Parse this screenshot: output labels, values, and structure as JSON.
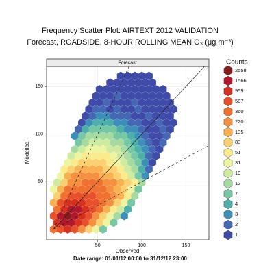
{
  "chart_data": {
    "type": "hexbin",
    "title": "Frequency Scatter Plot: AIRTEXT 2012 VALIDATION",
    "subtitle": "Forecast, ROADSIDE, 8-HOUR ROLLING MEAN O₃ (μg m⁻³)",
    "strip_label": "Forecast",
    "x_label": "Observed",
    "y_label": "Modelled",
    "footer": "Date range: 01/01/12 00:00 to 31/12/12 23:00",
    "xlim": [
      -8,
      176
    ],
    "ylim": [
      -11,
      171
    ],
    "xticks": [
      50,
      100,
      150
    ],
    "yticks": [
      50,
      100,
      150
    ],
    "grid": true,
    "reference_lines": [
      {
        "slope": 1,
        "dashed": false
      },
      {
        "slope": 2,
        "dashed": true
      },
      {
        "slope": 0.5,
        "dashed": true
      }
    ],
    "legend_title": "Counts",
    "legend_position": "right",
    "legend": [
      {
        "count": 2558,
        "color": "#8b1a1a"
      },
      {
        "count": 1566,
        "color": "#b2182b"
      },
      {
        "count": 959,
        "color": "#d7301f"
      },
      {
        "count": 587,
        "color": "#e8502a"
      },
      {
        "count": 360,
        "color": "#f07030"
      },
      {
        "count": 220,
        "color": "#f59040"
      },
      {
        "count": 135,
        "color": "#f9b050"
      },
      {
        "count": 83,
        "color": "#fbd070"
      },
      {
        "count": 51,
        "color": "#fceb8c"
      },
      {
        "count": 31,
        "color": "#eef5a0"
      },
      {
        "count": 19,
        "color": "#cfeba0"
      },
      {
        "count": 12,
        "color": "#a5dba0"
      },
      {
        "count": 7,
        "color": "#76c7a3"
      },
      {
        "count": 4,
        "color": "#4cafaa"
      },
      {
        "count": 3,
        "color": "#3c8fb8"
      },
      {
        "count": 2,
        "color": "#4568b5"
      },
      {
        "count": 1,
        "color": "#3f4ba8"
      }
    ],
    "hexbins": [
      {
        "y": 0,
        "x": [
          0,
          8,
          16,
          24,
          32,
          40,
          48,
          56
        ],
        "counts": [
          360,
          587,
          959,
          587,
          220,
          83,
          31,
          7
        ]
      },
      {
        "y": 7,
        "x": [
          4,
          12,
          20,
          28,
          36,
          44,
          52,
          60,
          68
        ],
        "counts": [
          959,
          1566,
          1566,
          959,
          587,
          220,
          83,
          31,
          7
        ]
      },
      {
        "y": 14,
        "x": [
          0,
          8,
          16,
          24,
          32,
          40,
          48,
          56,
          64,
          72,
          80
        ],
        "counts": [
          587,
          1566,
          2558,
          1566,
          959,
          587,
          220,
          83,
          31,
          12,
          3
        ]
      },
      {
        "y": 21,
        "x": [
          4,
          12,
          20,
          28,
          36,
          44,
          52,
          60,
          68,
          76,
          84
        ],
        "counts": [
          360,
          959,
          1566,
          1566,
          959,
          587,
          360,
          135,
          51,
          19,
          4
        ]
      },
      {
        "y": 28,
        "x": [
          0,
          8,
          16,
          24,
          32,
          40,
          48,
          56,
          64,
          72,
          80,
          88
        ],
        "counts": [
          135,
          587,
          959,
          959,
          959,
          587,
          587,
          360,
          220,
          83,
          31,
          7
        ]
      },
      {
        "y": 35,
        "x": [
          4,
          12,
          20,
          28,
          36,
          44,
          52,
          60,
          68,
          76,
          84,
          92
        ],
        "counts": [
          83,
          360,
          587,
          587,
          587,
          587,
          360,
          360,
          220,
          135,
          51,
          12
        ]
      },
      {
        "y": 42,
        "x": [
          0,
          8,
          16,
          24,
          32,
          40,
          48,
          56,
          64,
          72,
          80,
          88,
          96
        ],
        "counts": [
          31,
          135,
          360,
          360,
          360,
          360,
          360,
          360,
          220,
          135,
          83,
          31,
          7
        ]
      },
      {
        "y": 49,
        "x": [
          4,
          12,
          20,
          28,
          36,
          44,
          52,
          60,
          68,
          76,
          84,
          92,
          100
        ],
        "counts": [
          19,
          83,
          220,
          220,
          360,
          360,
          360,
          220,
          220,
          135,
          83,
          51,
          12
        ]
      },
      {
        "y": 56,
        "x": [
          8,
          16,
          24,
          32,
          40,
          48,
          56,
          64,
          72,
          80,
          88,
          96,
          104
        ],
        "counts": [
          31,
          135,
          220,
          220,
          220,
          220,
          135,
          135,
          83,
          51,
          19,
          7,
          3
        ]
      },
      {
        "y": 63,
        "x": [
          12,
          20,
          28,
          36,
          44,
          52,
          60,
          68,
          76,
          84,
          92,
          100,
          108
        ],
        "counts": [
          51,
          83,
          135,
          135,
          135,
          135,
          83,
          83,
          51,
          19,
          12,
          4,
          2
        ]
      },
      {
        "y": 70,
        "x": [
          16,
          24,
          32,
          40,
          48,
          56,
          64,
          72,
          80,
          88,
          96,
          104,
          112
        ],
        "counts": [
          31,
          51,
          83,
          83,
          83,
          83,
          51,
          31,
          19,
          12,
          7,
          3,
          1
        ]
      },
      {
        "y": 77,
        "x": [
          20,
          28,
          36,
          44,
          52,
          60,
          68,
          76,
          84,
          92,
          100,
          108,
          116
        ],
        "counts": [
          19,
          31,
          51,
          51,
          51,
          51,
          31,
          19,
          12,
          7,
          4,
          2,
          1
        ]
      },
      {
        "y": 84,
        "x": [
          24,
          32,
          40,
          48,
          56,
          64,
          72,
          80,
          88,
          96,
          104,
          112,
          120
        ],
        "counts": [
          12,
          19,
          31,
          31,
          31,
          19,
          19,
          12,
          7,
          4,
          3,
          2,
          1
        ]
      },
      {
        "y": 91,
        "x": [
          28,
          36,
          44,
          52,
          60,
          68,
          76,
          84,
          92,
          100,
          108,
          116,
          124
        ],
        "counts": [
          7,
          12,
          19,
          19,
          19,
          12,
          12,
          7,
          4,
          3,
          2,
          1,
          2
        ]
      },
      {
        "y": 98,
        "x": [
          24,
          32,
          40,
          48,
          56,
          64,
          72,
          80,
          88,
          96,
          104,
          112,
          120,
          128
        ],
        "counts": [
          3,
          7,
          12,
          12,
          12,
          12,
          7,
          7,
          4,
          3,
          2,
          1,
          1,
          2
        ]
      },
      {
        "y": 105,
        "x": [
          28,
          36,
          44,
          52,
          60,
          68,
          76,
          84,
          92,
          100,
          108,
          116,
          124,
          132
        ],
        "counts": [
          2,
          4,
          7,
          7,
          7,
          7,
          4,
          3,
          3,
          2,
          1,
          1,
          2,
          1
        ]
      },
      {
        "y": 112,
        "x": [
          32,
          40,
          48,
          56,
          64,
          72,
          80,
          88,
          96,
          104,
          112,
          120,
          128,
          136
        ],
        "counts": [
          1,
          3,
          4,
          4,
          4,
          3,
          3,
          2,
          2,
          1,
          1,
          2,
          1,
          1
        ]
      },
      {
        "y": 119,
        "x": [
          36,
          44,
          52,
          60,
          68,
          76,
          84,
          92,
          100,
          108,
          116,
          124,
          132
        ],
        "counts": [
          1,
          2,
          3,
          3,
          2,
          2,
          2,
          1,
          1,
          2,
          1,
          1,
          1
        ]
      },
      {
        "y": 126,
        "x": [
          40,
          48,
          56,
          64,
          72,
          80,
          88,
          96,
          104,
          112,
          120,
          128,
          136
        ],
        "counts": [
          1,
          2,
          2,
          1,
          2,
          1,
          1,
          2,
          1,
          1,
          1,
          1,
          1
        ]
      },
      {
        "y": 133,
        "x": [
          44,
          52,
          60,
          68,
          76,
          84,
          92,
          100,
          108,
          116,
          124,
          132
        ],
        "counts": [
          1,
          1,
          2,
          1,
          1,
          1,
          2,
          1,
          1,
          1,
          1,
          1
        ]
      },
      {
        "y": 140,
        "x": [
          48,
          56,
          64,
          72,
          80,
          88,
          96,
          104,
          112,
          120,
          128
        ],
        "counts": [
          1,
          1,
          1,
          2,
          1,
          1,
          1,
          1,
          1,
          1,
          1
        ]
      },
      {
        "y": 147,
        "x": [
          52,
          60,
          68,
          76,
          84,
          92,
          100,
          108,
          116,
          124
        ],
        "counts": [
          1,
          1,
          1,
          1,
          1,
          1,
          1,
          1,
          1,
          1
        ]
      },
      {
        "y": 154,
        "x": [
          64,
          72,
          80,
          88,
          96,
          104,
          112
        ],
        "counts": [
          1,
          1,
          1,
          1,
          1,
          1,
          1
        ]
      },
      {
        "y": 161,
        "x": [
          76,
          84,
          92,
          100,
          108
        ],
        "counts": [
          1,
          1,
          1,
          1,
          1
        ]
      }
    ]
  }
}
